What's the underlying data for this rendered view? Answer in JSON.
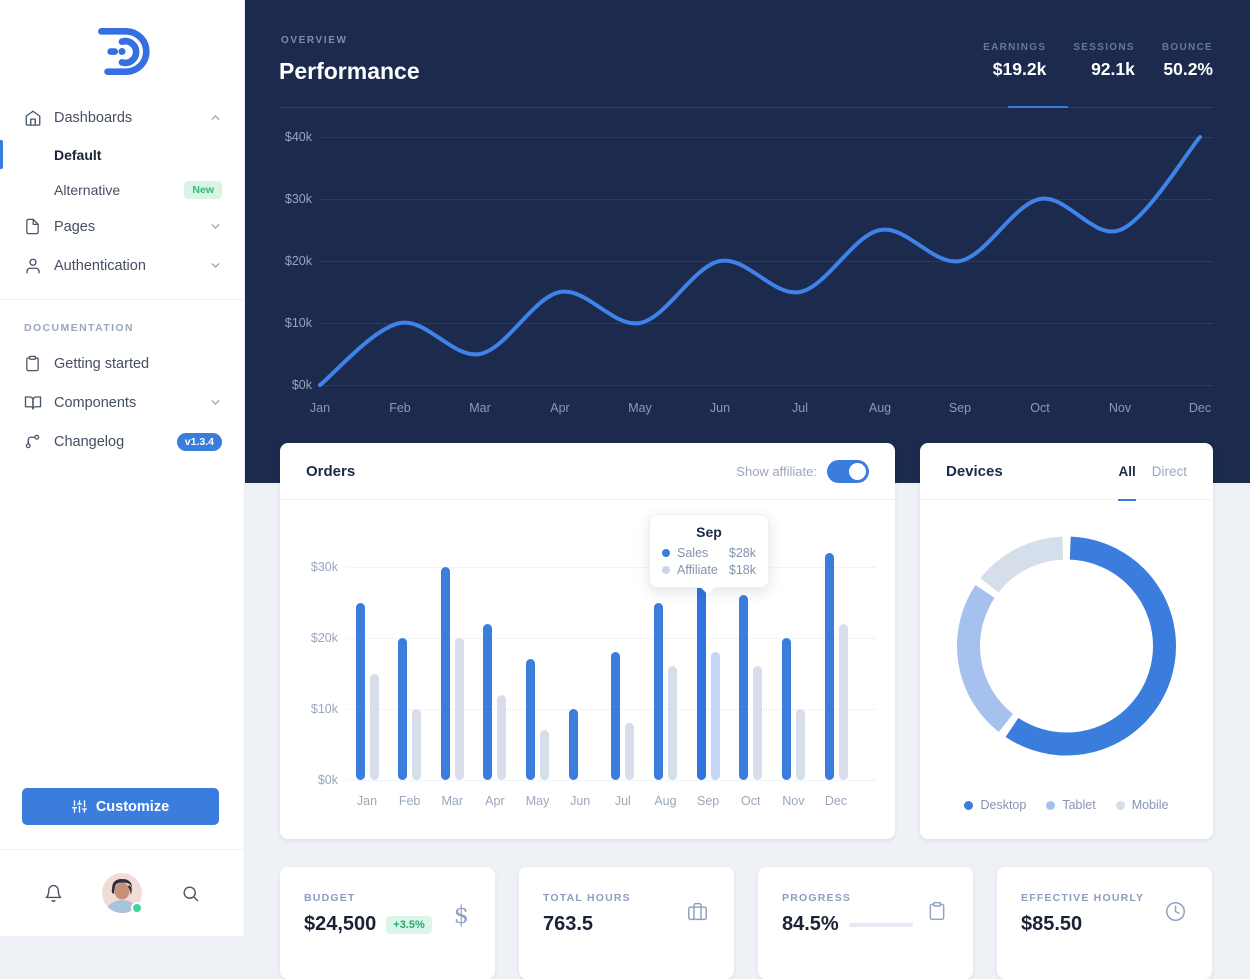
{
  "colors": {
    "primary": "#3b7ddd",
    "navy_header": "#1b2a4d",
    "line_stroke": "#3f82e8",
    "sales_bar": "#3b7ddd",
    "affiliate_bar": "#d7dee9",
    "affiliate_bar_highlight": "#c3d6f4",
    "donut_desktop": "#3b7ddd",
    "donut_tablet": "#a7c1ef",
    "donut_mobile": "#d5deeb",
    "badge_green_bg": "#d9f3e5",
    "badge_green_text": "#2fb877"
  },
  "sidebar": {
    "nav": [
      {
        "label": "Dashboards",
        "icon": "home-icon",
        "chevron": "up"
      },
      {
        "label": "Default",
        "active": true
      },
      {
        "label": "Alternative",
        "badge": "New"
      },
      {
        "label": "Pages",
        "icon": "file-icon",
        "chevron": "down"
      },
      {
        "label": "Authentication",
        "icon": "user-icon",
        "chevron": "down"
      }
    ],
    "section_label": "DOCUMENTATION",
    "docs": [
      {
        "label": "Getting started",
        "icon": "clipboard-icon"
      },
      {
        "label": "Components",
        "icon": "book-icon",
        "chevron": "down"
      },
      {
        "label": "Changelog",
        "icon": "git-branch-icon",
        "badge": "v1.3.4"
      }
    ],
    "customize_label": "Customize"
  },
  "header": {
    "overview_label": "OVERVIEW",
    "title": "Performance",
    "stats": [
      {
        "label": "EARNINGS",
        "value": "$19.2k",
        "active": true
      },
      {
        "label": "SESSIONS",
        "value": "92.1k",
        "active": false
      },
      {
        "label": "BOUNCE",
        "value": "50.2%",
        "active": false
      }
    ]
  },
  "orders_card": {
    "title": "Orders",
    "toggle_label": "Show affiliate:",
    "toggle_on": true,
    "tooltip": {
      "title": "Sep",
      "rows": [
        {
          "label": "Sales",
          "value": "$28k"
        },
        {
          "label": "Affiliate",
          "value": "$18k"
        }
      ]
    }
  },
  "devices_card": {
    "title": "Devices",
    "tabs": [
      {
        "label": "All",
        "active": true
      },
      {
        "label": "Direct",
        "active": false
      }
    ]
  },
  "kpis": [
    {
      "label": "BUDGET",
      "value": "$24,500",
      "badge": "+3.5%",
      "icon": "dollar-icon"
    },
    {
      "label": "TOTAL HOURS",
      "value": "763.5",
      "icon": "briefcase-icon"
    },
    {
      "label": "PROGRESS",
      "value": "84.5%",
      "icon": "clipboard-icon",
      "progress": 84.5
    },
    {
      "label": "EFFECTIVE HOURLY",
      "value": "$85.50",
      "icon": "clock-icon"
    }
  ],
  "chart_data": [
    {
      "id": "performance",
      "type": "line",
      "title": "Performance (Earnings)",
      "x": [
        "Jan",
        "Feb",
        "Mar",
        "Apr",
        "May",
        "Jun",
        "Jul",
        "Aug",
        "Sep",
        "Oct",
        "Nov",
        "Dec"
      ],
      "series": [
        {
          "name": "Earnings",
          "values": [
            0,
            10,
            5,
            15,
            10,
            20,
            15,
            25,
            20,
            30,
            25,
            40
          ],
          "color": "#3f82e8"
        }
      ],
      "ylim": [
        0,
        40
      ],
      "yticks": [
        "$0k",
        "$10k",
        "$20k",
        "$30k",
        "$40k"
      ],
      "unit": "k USD",
      "grid": "dotted-horizontal",
      "legend": "none"
    },
    {
      "id": "orders",
      "type": "bar",
      "title": "Orders",
      "categories": [
        "Jan",
        "Feb",
        "Mar",
        "Apr",
        "May",
        "Jun",
        "Jul",
        "Aug",
        "Sep",
        "Oct",
        "Nov",
        "Dec"
      ],
      "series": [
        {
          "name": "Sales",
          "values": [
            25,
            20,
            30,
            22,
            17,
            10,
            18,
            25,
            28,
            26,
            20,
            32
          ],
          "color": "#3b7ddd"
        },
        {
          "name": "Affiliate",
          "values": [
            15,
            10,
            20,
            12,
            7,
            0,
            8,
            16,
            18,
            16,
            10,
            22
          ],
          "color": "#d7dee9"
        }
      ],
      "highlighted_category": "Sep",
      "ylim": [
        0,
        30
      ],
      "yticks": [
        "$0k",
        "$10k",
        "$20k",
        "$30k"
      ],
      "unit": "k USD",
      "grid": "dotted-horizontal",
      "legend": "none"
    },
    {
      "id": "devices",
      "type": "donut",
      "title": "Devices",
      "slices": [
        {
          "label": "Desktop",
          "value": 60,
          "color": "#3b7ddd"
        },
        {
          "label": "Tablet",
          "value": 25,
          "color": "#a7c1ef"
        },
        {
          "label": "Mobile",
          "value": 15,
          "color": "#d5deeb"
        }
      ],
      "legend_position": "bottom"
    }
  ]
}
